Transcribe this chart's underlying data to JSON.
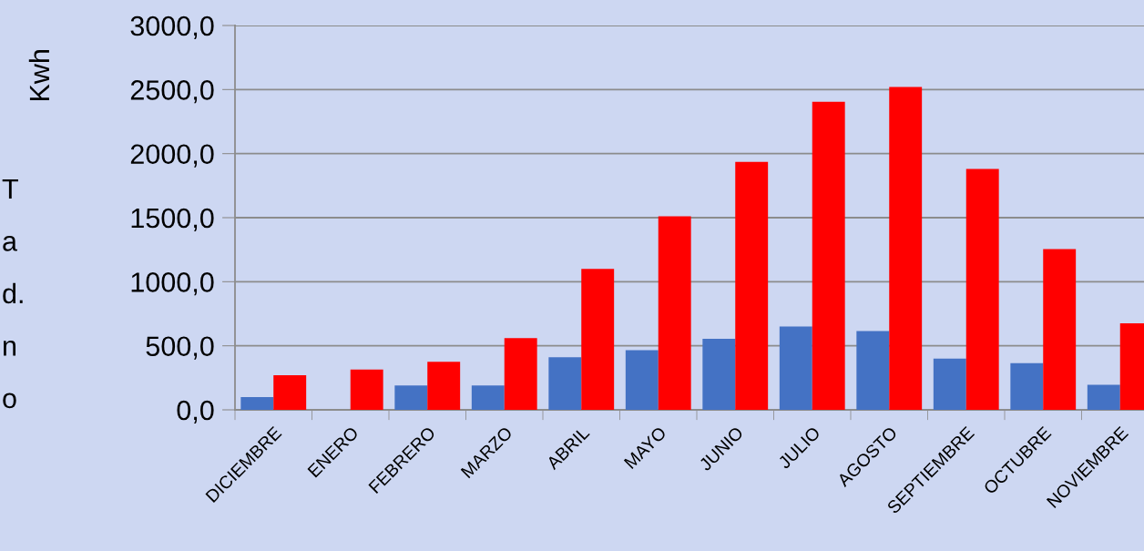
{
  "chart_data": {
    "type": "bar",
    "ylabel": "Kwh",
    "categories": [
      "DICIEMBRE",
      "ENERO",
      "FEBRERO",
      "MARZO",
      "ABRIL",
      "MAYO",
      "JUNIO",
      "JULIO",
      "AGOSTO",
      "SEPTIEMBRE",
      "OCTUBRE",
      "NOVIEMBRE"
    ],
    "series": [
      {
        "color": "#4472c4",
        "values": [
          100,
          0,
          190,
          190,
          410,
          465,
          555,
          650,
          615,
          400,
          365,
          195
        ]
      },
      {
        "color": "#ff0000",
        "values": [
          270,
          315,
          375,
          560,
          1100,
          1510,
          1935,
          2405,
          2520,
          1880,
          1255,
          675
        ]
      }
    ],
    "ylim": [
      0,
      3000
    ],
    "yticks": [
      {
        "value": 0,
        "label": "0,0"
      },
      {
        "value": 500,
        "label": "500,0"
      },
      {
        "value": 1000,
        "label": "1000,0"
      },
      {
        "value": 1500,
        "label": "1500,0"
      },
      {
        "value": 2000,
        "label": "2000,0"
      },
      {
        "value": 2500,
        "label": "2500,0"
      },
      {
        "value": 3000,
        "label": "3000,0"
      }
    ],
    "grid": "y",
    "annotations": [
      "T",
      "a",
      "d.",
      "n",
      "o"
    ]
  }
}
